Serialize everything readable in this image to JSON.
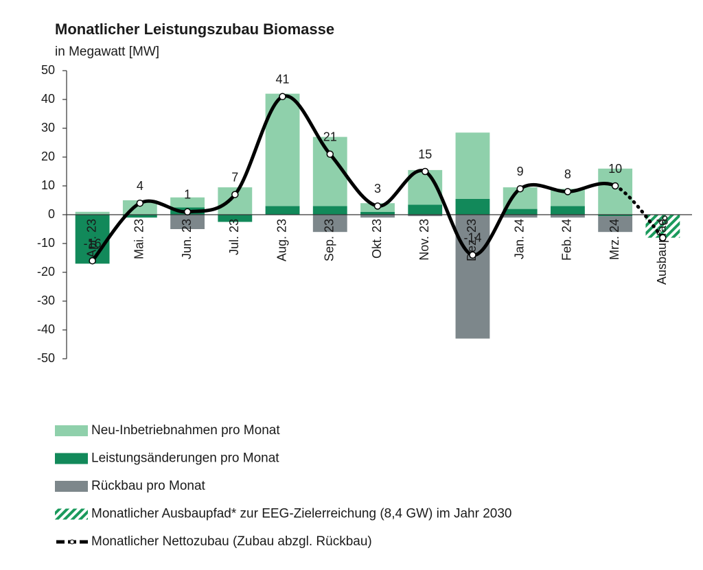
{
  "chart_data": {
    "type": "bar",
    "title": "Monatlicher Leistungszubau Biomasse",
    "subtitle": "in Megawatt [MW]",
    "categories": [
      "Apr. 23",
      "Mai. 23",
      "Jun. 23",
      "Jul. 23",
      "Aug. 23",
      "Sep. 23",
      "Okt. 23",
      "Nov. 23",
      "Dez. 23",
      "Jan. 24",
      "Feb. 24",
      "Mrz. 24",
      "Ausbaupfad"
    ],
    "ylim": [
      -50,
      50
    ],
    "yticks": [
      -50,
      -40,
      -30,
      -20,
      -10,
      0,
      10,
      20,
      30,
      40,
      50
    ],
    "series": [
      {
        "name": "Neu-Inbetriebnahmen pro Monat",
        "type": "bar",
        "color": "#8fd0ab",
        "values": [
          1,
          5,
          3.5,
          9.5,
          39,
          24,
          3,
          12,
          23,
          7.5,
          6,
          16,
          null
        ]
      },
      {
        "name": "Leistungsänderungen pro Monat",
        "type": "bar",
        "color": "#12895a",
        "values": [
          -17,
          -1,
          2.5,
          -2.5,
          3,
          3,
          1,
          3.5,
          5.5,
          2,
          3,
          -0.5,
          null
        ]
      },
      {
        "name": "Rückbau pro Monat",
        "type": "bar",
        "color": "#7d878b",
        "values": [
          0,
          0,
          -5,
          0,
          0,
          -6,
          -1,
          -0.5,
          -43,
          -1,
          -1,
          -5.5,
          null
        ]
      },
      {
        "name": "Monatlicher Ausbaupfad* zur EEG-Zielerreichung (8,4 GW) im Jahr 2030",
        "type": "bar",
        "color": "#1a9a5c",
        "pattern": "hatch",
        "values": [
          null,
          null,
          null,
          null,
          null,
          null,
          null,
          null,
          null,
          null,
          null,
          null,
          -8
        ]
      },
      {
        "name": "Monatlicher Nettozubau (Zubau abzgl. Rückbau)",
        "type": "line",
        "color": "#000000",
        "values": [
          -16,
          4,
          1,
          7,
          41,
          21,
          3,
          15,
          -14,
          9,
          8,
          10,
          -8
        ]
      }
    ]
  }
}
